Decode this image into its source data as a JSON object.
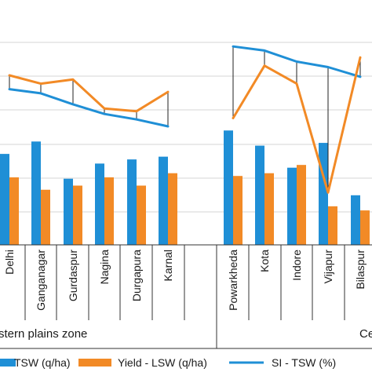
{
  "chart_data": {
    "type": "bar",
    "zones": [
      {
        "label": "stern plains zone"
      },
      {
        "label": "Ce"
      }
    ],
    "categories": [
      "Delhi",
      "Ganganagar",
      "Gurdaspur",
      "Nagina",
      "Durgapura",
      "Karnal",
      "Powarkheda",
      "Kota",
      "Indore",
      "Vijapur",
      "Bilaspur"
    ],
    "category_zone": [
      0,
      0,
      0,
      0,
      0,
      0,
      1,
      1,
      1,
      1,
      1
    ],
    "series": [
      {
        "name": "TSW (q/ha)",
        "kind": "bar",
        "color": "#1f8fd6",
        "values": [
          64,
          73,
          46,
          57,
          60,
          62,
          81,
          70,
          54,
          72,
          34
        ]
      },
      {
        "name": "Yield - LSW (q/ha)",
        "kind": "bar",
        "color": "#f28a26",
        "values": [
          47,
          38,
          41,
          47,
          41,
          50,
          48,
          50,
          56,
          26,
          23
        ]
      },
      {
        "name": "SI - TSW (%)",
        "kind": "line",
        "color": "#1f8fd6",
        "values": [
          111,
          108,
          100,
          93,
          89,
          84,
          142,
          139,
          131,
          127,
          120
        ]
      },
      {
        "name": "",
        "kind": "line",
        "color": "#f28a26",
        "values": [
          121,
          115,
          118,
          97,
          95,
          109,
          90,
          128,
          115,
          36,
          134
        ]
      }
    ],
    "legend_items": [
      "TSW (q/ha)",
      "Yield - LSW (q/ha)",
      "SI - TSW (%)"
    ],
    "ylim": [
      -2,
      170
    ],
    "grid": true,
    "legend_position": "bottom"
  }
}
